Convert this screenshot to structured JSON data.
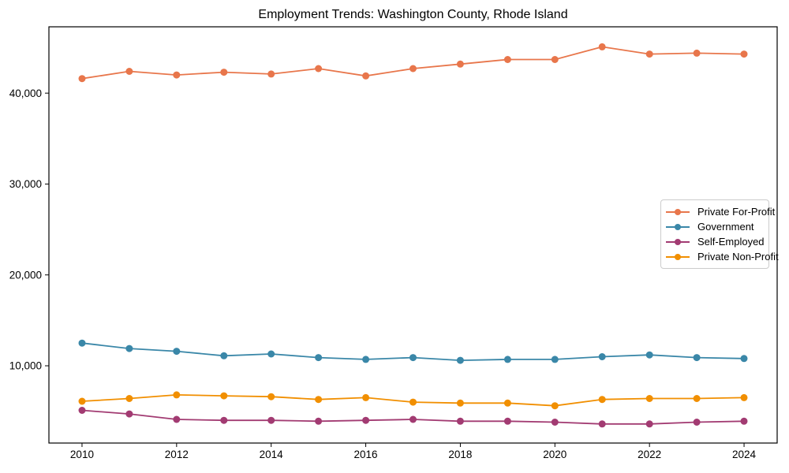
{
  "chart_data": {
    "type": "line",
    "title": "Employment Trends: Washington County, Rhode Island",
    "xlabel": "",
    "ylabel": "",
    "x": [
      2010,
      2011,
      2012,
      2013,
      2014,
      2015,
      2016,
      2017,
      2018,
      2019,
      2020,
      2021,
      2022,
      2023,
      2024
    ],
    "series": [
      {
        "id": "private-for-profit",
        "name": "Private For-Profit",
        "color": "#E8764B",
        "values": [
          41600,
          42400,
          42000,
          42300,
          42100,
          42700,
          41900,
          42700,
          43200,
          43700,
          43700,
          45100,
          44300,
          44400,
          44300
        ]
      },
      {
        "id": "government",
        "name": "Government",
        "color": "#3A87A8",
        "values": [
          12500,
          11900,
          11600,
          11100,
          11300,
          10900,
          10700,
          10900,
          10600,
          10700,
          10700,
          11000,
          11200,
          10900,
          10800
        ]
      },
      {
        "id": "self-employed",
        "name": "Self-Employed",
        "color": "#A23B72",
        "values": [
          5100,
          4700,
          4100,
          4000,
          4000,
          3900,
          4000,
          4100,
          3900,
          3900,
          3800,
          3600,
          3600,
          3800,
          3900
        ]
      },
      {
        "id": "private-non-profit",
        "name": "Private Non-Profit",
        "color": "#F18F01",
        "values": [
          6100,
          6400,
          6800,
          6700,
          6600,
          6300,
          6500,
          6000,
          5900,
          5900,
          5600,
          6300,
          6400,
          6400,
          6500
        ]
      }
    ],
    "xlim": [
      2009.3,
      2024.7
    ],
    "ylim": [
      1500,
      47300
    ],
    "xticks": [
      2010,
      2012,
      2014,
      2016,
      2018,
      2020,
      2022,
      2024
    ],
    "yticks": [
      10000,
      20000,
      30000,
      40000
    ],
    "ytick_labels": [
      "10,000",
      "20,000",
      "30,000",
      "40,000"
    ],
    "grid": false,
    "legend_position": "center right"
  }
}
